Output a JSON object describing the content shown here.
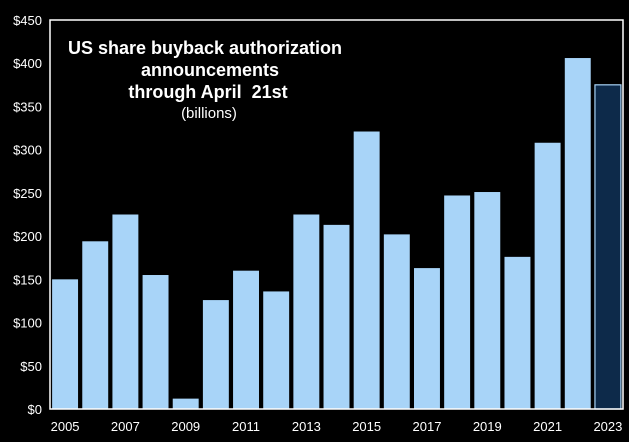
{
  "chart_data": {
    "type": "bar",
    "title_lines": [
      "US share buyback authorization",
      "announcements",
      "through April  21st"
    ],
    "subtitle": "(billions)",
    "xlabel": "",
    "ylabel": "",
    "ylim": [
      0,
      450
    ],
    "y_ticks": [
      "$0",
      "$50",
      "$100",
      "$150",
      "$200",
      "$250",
      "$300",
      "$350",
      "$400",
      "$450"
    ],
    "x_tick_labels": [
      "2005",
      "2007",
      "2009",
      "2011",
      "2013",
      "2015",
      "2017",
      "2019",
      "2021",
      "2023"
    ],
    "categories": [
      "2005",
      "2006",
      "2007",
      "2008",
      "2009",
      "2010",
      "2011",
      "2012",
      "2013",
      "2014",
      "2015",
      "2016",
      "2017",
      "2018",
      "2019",
      "2020",
      "2021",
      "2022",
      "2023"
    ],
    "values": [
      150,
      194,
      225,
      155,
      12,
      126,
      160,
      136,
      225,
      213,
      321,
      202,
      163,
      247,
      251,
      176,
      308,
      406,
      375
    ],
    "grid": false,
    "colors": {
      "bar": "#a8d4f8",
      "highlight_bar": "#0d2a4a",
      "highlight_edge": "#a8d4f8",
      "background": "#000000",
      "frame": "#ffffff",
      "text": "#ffffff"
    },
    "highlight_category": "2023"
  }
}
